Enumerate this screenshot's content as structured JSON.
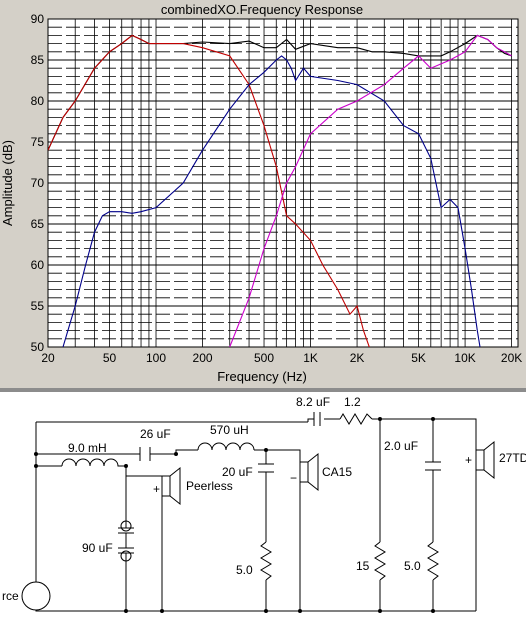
{
  "window": {
    "title": "combinedXO.Frequency Response"
  },
  "chart_data": {
    "type": "line",
    "title": "combinedXO.Frequency Response",
    "xlabel": "Frequency (Hz)",
    "ylabel": "Amplitude (dB)",
    "xscale": "log",
    "xlim": [
      20,
      22000
    ],
    "ylim": [
      50,
      90
    ],
    "xticks": [
      20,
      50,
      100,
      200,
      500,
      1000,
      2000,
      5000,
      10000,
      20000
    ],
    "xtick_labels": [
      "20",
      "50",
      "100",
      "200",
      "500",
      "1K",
      "2K",
      "5K",
      "10K",
      "20K"
    ],
    "yticks": [
      50,
      55,
      60,
      65,
      70,
      75,
      80,
      85,
      90
    ],
    "ytick_labels": [
      "50",
      "55",
      "60",
      "65",
      "70",
      "75",
      "80",
      "85",
      "90"
    ],
    "grid": true,
    "series": [
      {
        "color": "#000000",
        "x": [
          20,
          25,
          30,
          40,
          50,
          60,
          70,
          80,
          90,
          100,
          150,
          200,
          300,
          400,
          500,
          600,
          700,
          800,
          1000,
          1500,
          2000,
          2500,
          3000,
          4000,
          5000,
          6000,
          7000,
          8000,
          10000,
          12000,
          14000,
          16000,
          18000,
          20000
        ],
        "y": [
          74,
          78,
          80,
          84,
          86,
          87,
          88,
          87.5,
          87,
          87,
          87,
          87.2,
          87,
          87.3,
          86.5,
          86.5,
          87.5,
          86.3,
          87,
          86.5,
          86.5,
          86,
          86,
          85.8,
          85.5,
          85.5,
          85.5,
          86,
          87,
          88,
          87.5,
          86.5,
          85.8,
          85.5
        ]
      },
      {
        "color": "#c00000",
        "x": [
          20,
          25,
          30,
          40,
          50,
          60,
          70,
          80,
          90,
          100,
          150,
          200,
          300,
          400,
          500,
          600,
          700,
          800,
          1000,
          1200,
          1500,
          1800,
          2000,
          2200,
          2400,
          2600
        ],
        "y": [
          74,
          78,
          80,
          84,
          86,
          87,
          88,
          87.5,
          87,
          87,
          87,
          86.5,
          85.5,
          82,
          77,
          72,
          66,
          65,
          63,
          60,
          57,
          54,
          55,
          52,
          50,
          48
        ]
      },
      {
        "color": "#00008b",
        "x": [
          25,
          30,
          35,
          40,
          45,
          50,
          60,
          70,
          80,
          100,
          150,
          200,
          300,
          400,
          500,
          600,
          650,
          700,
          750,
          800,
          900,
          1000,
          1500,
          2000,
          3000,
          4000,
          5000,
          6000,
          7000,
          8000,
          9000,
          10000,
          11000,
          12000,
          13000
        ],
        "y": [
          50,
          55,
          60,
          64,
          66,
          66.5,
          66.5,
          66.3,
          66.5,
          67,
          70,
          74,
          79,
          82,
          83.5,
          85,
          85.5,
          85,
          84,
          82.5,
          84,
          83,
          82.5,
          82,
          80,
          77,
          76,
          73,
          67,
          68,
          67,
          62,
          57,
          52,
          48
        ]
      },
      {
        "color": "#cc00cc",
        "x": [
          300,
          400,
          500,
          600,
          700,
          800,
          1000,
          1500,
          2000,
          3000,
          4000,
          5000,
          6000,
          8000,
          10000,
          12000,
          14000,
          16000,
          18000,
          20000
        ],
        "y": [
          50,
          56,
          62,
          66,
          70,
          72,
          76,
          79,
          80,
          82,
          84,
          85.5,
          84,
          85,
          86,
          88,
          87.5,
          86.5,
          86,
          85.5
        ]
      }
    ]
  },
  "schematic": {
    "labels": {
      "c_top": "8.2 uF",
      "r_top": "1.2",
      "c_mid": "26 uF",
      "l_mid": "570 uH",
      "l_low": "9.0 mH",
      "c_20": "20 uF",
      "c_2": "2.0 uF",
      "c_90": "90 uF",
      "r_5a": "5.0",
      "r_15": "15",
      "r_5b": "5.0",
      "drv_mid": "CA15",
      "drv_woof": "Peerless",
      "drv_tw": "27TD",
      "source": "rce",
      "plus": "+",
      "minus": "−"
    }
  }
}
